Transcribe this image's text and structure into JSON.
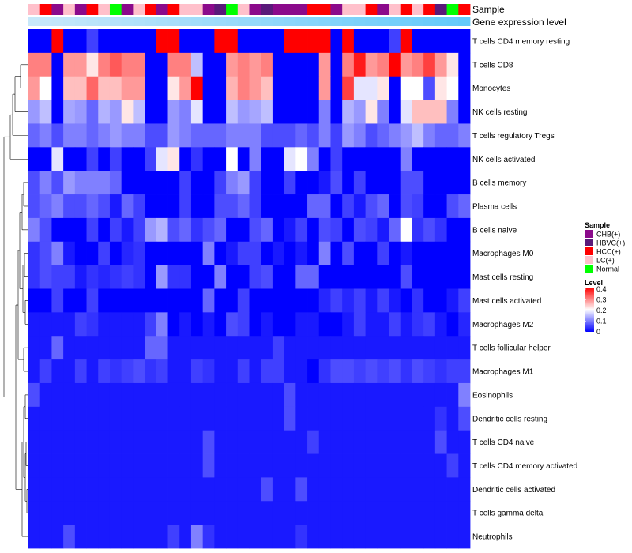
{
  "chart_data": {
    "type": "heatmap",
    "title": "",
    "n_columns": 38,
    "annotation_tracks": [
      "Sample",
      "Gene expression level"
    ],
    "sample_legend": {
      "title": "Sample",
      "entries": [
        {
          "label": "CHB(+)",
          "color": "#8B0A8B"
        },
        {
          "label": "HBVC(+)",
          "color": "#5A1A7A"
        },
        {
          "label": "HCC(+)",
          "color": "#FF0000"
        },
        {
          "label": "LC(+)",
          "color": "#FFC0CB"
        },
        {
          "label": "Normal",
          "color": "#00FF00"
        }
      ]
    },
    "level_legend": {
      "title": "Level",
      "ticks": [
        "0.4",
        "0.3",
        "0.2",
        "0.1",
        "0"
      ],
      "range": [
        0,
        0.4
      ],
      "colors": [
        "#0000FF",
        "#FFFFFF",
        "#FF0000"
      ]
    },
    "sample_groups": [
      "LC(+)",
      "HCC(+)",
      "CHB(+)",
      "LC(+)",
      "CHB(+)",
      "HCC(+)",
      "LC(+)",
      "Normal",
      "CHB(+)",
      "LC(+)",
      "HCC(+)",
      "CHB(+)",
      "HCC(+)",
      "LC(+)",
      "LC(+)",
      "CHB(+)",
      "HBVC(+)",
      "Normal",
      "LC(+)",
      "CHB(+)",
      "HBVC(+)",
      "CHB(+)",
      "CHB(+)",
      "CHB(+)",
      "HCC(+)",
      "HCC(+)",
      "CHB(+)",
      "LC(+)",
      "LC(+)",
      "HCC(+)",
      "CHB(+)",
      "LC(+)",
      "HCC(+)",
      "LC(+)",
      "HCC(+)",
      "HBVC(+)",
      "Normal",
      "HCC(+)"
    ],
    "row_labels": [
      "T cells CD4 memory resting",
      "T cells CD8",
      "Monocytes",
      "NK cells resting",
      "T cells regulatory  Tregs",
      "NK cells activated",
      "B cells memory",
      "Plasma cells",
      "B cells naive",
      "Macrophages M0",
      "Mast cells resting",
      "Mast cells activated",
      "Macrophages M2",
      "T cells follicular helper",
      "Macrophages M1",
      "Eosinophils",
      "Dendritic cells resting",
      "T cells CD4 naive",
      "T cells CD4 memory activated",
      "Dendritic cells activated",
      "T cells gamma delta",
      "Neutrophils"
    ],
    "values": [
      [
        0,
        0,
        0.4,
        0,
        0,
        0.05,
        0,
        0,
        0,
        0,
        0,
        0.4,
        0.4,
        0,
        0,
        0,
        0.4,
        0.4,
        0,
        0,
        0,
        0,
        0.4,
        0.4,
        0.4,
        0.4,
        0,
        0.4,
        0,
        0,
        0,
        0.05,
        0.4,
        0,
        0,
        0,
        0,
        0
      ],
      [
        0.3,
        0.3,
        0,
        0.28,
        0.28,
        0.22,
        0.3,
        0.33,
        0.3,
        0.3,
        0,
        0,
        0.3,
        0.3,
        0.15,
        0,
        0,
        0.28,
        0.3,
        0.28,
        0.3,
        0,
        0,
        0,
        0,
        0.28,
        0,
        0.3,
        0.38,
        0.28,
        0.3,
        0.4,
        0.28,
        0.3,
        0.35,
        0.28,
        0.22,
        0
      ],
      [
        0.28,
        0.2,
        0,
        0.25,
        0.25,
        0.32,
        0.25,
        0.25,
        0.28,
        0.28,
        0,
        0,
        0.22,
        0.28,
        0.4,
        0,
        0,
        0.26,
        0.3,
        0.28,
        0.25,
        0,
        0,
        0,
        0,
        0.28,
        0,
        0.35,
        0.18,
        0.18,
        0.22,
        0,
        0.2,
        0.2,
        0.06,
        0.22,
        0.2,
        0
      ],
      [
        0.12,
        0.15,
        0,
        0.13,
        0.12,
        0.08,
        0.14,
        0.12,
        0.22,
        0.15,
        0,
        0,
        0.12,
        0.1,
        0.18,
        0,
        0,
        0.15,
        0.12,
        0.13,
        0.15,
        0,
        0,
        0,
        0,
        0.1,
        0,
        0.14,
        0.12,
        0.22,
        0.1,
        0,
        0.18,
        0.25,
        0.25,
        0.25,
        0.1,
        0
      ],
      [
        0.08,
        0.1,
        0.06,
        0.1,
        0.1,
        0.08,
        0.1,
        0.12,
        0.1,
        0.1,
        0.06,
        0.06,
        0.12,
        0.1,
        0.08,
        0.08,
        0.08,
        0.1,
        0.1,
        0.1,
        0.06,
        0.06,
        0.06,
        0.08,
        0.06,
        0.1,
        0.05,
        0.12,
        0.1,
        0.06,
        0.08,
        0.1,
        0.12,
        0.15,
        0.1,
        0.08,
        0.08,
        0.1
      ],
      [
        0,
        0,
        0.18,
        0,
        0,
        0.05,
        0,
        0.05,
        0,
        0,
        0.05,
        0.18,
        0.22,
        0,
        0.04,
        0,
        0,
        0.2,
        0,
        0.1,
        0,
        0,
        0.18,
        0.2,
        0.1,
        0,
        0.05,
        0,
        0,
        0,
        0,
        0,
        0.1,
        0,
        0,
        0,
        0,
        0
      ],
      [
        0.06,
        0.1,
        0.06,
        0.12,
        0.1,
        0.1,
        0.1,
        0.08,
        0,
        0,
        0,
        0,
        0,
        0.05,
        0,
        0,
        0.05,
        0.1,
        0.12,
        0.05,
        0,
        0,
        0.05,
        0,
        0,
        0.02,
        0.06,
        0,
        0.05,
        0,
        0,
        0,
        0.06,
        0.06,
        0,
        0,
        0,
        0
      ],
      [
        0.06,
        0.08,
        0.1,
        0.06,
        0.06,
        0.08,
        0.06,
        0.02,
        0.08,
        0.05,
        0,
        0,
        0,
        0.05,
        0,
        0,
        0.06,
        0.06,
        0.08,
        0.05,
        0,
        0,
        0,
        0,
        0.08,
        0.08,
        0,
        0.05,
        0.02,
        0.06,
        0.08,
        0,
        0.06,
        0.05,
        0,
        0,
        0.06,
        0.08
      ],
      [
        0.1,
        0.06,
        0,
        0,
        0,
        0.05,
        0,
        0.05,
        0.02,
        0.05,
        0.12,
        0.14,
        0.06,
        0.08,
        0.04,
        0.06,
        0.08,
        0,
        0,
        0.06,
        0.08,
        0,
        0.02,
        0.05,
        0,
        0.06,
        0.05,
        0,
        0.06,
        0.05,
        0.02,
        0.08,
        0.2,
        0.04,
        0.06,
        0.04,
        0,
        0
      ],
      [
        0.04,
        0.06,
        0.1,
        0.02,
        0,
        0,
        0.05,
        0,
        0.03,
        0.04,
        0,
        0,
        0,
        0,
        0,
        0.1,
        0,
        0.02,
        0.05,
        0.05,
        0,
        0.02,
        0,
        0.02,
        0,
        0.1,
        0,
        0.06,
        0,
        0,
        0.05,
        0,
        0.02,
        0,
        0,
        0,
        0,
        0
      ],
      [
        0.04,
        0.06,
        0.05,
        0.05,
        0.02,
        0.04,
        0.03,
        0.04,
        0.05,
        0.04,
        0,
        0.12,
        0.04,
        0.04,
        0,
        0,
        0.1,
        0,
        0,
        0.05,
        0.06,
        0,
        0,
        0.08,
        0.08,
        0,
        0,
        0,
        0,
        0,
        0,
        0,
        0.06,
        0,
        0,
        0,
        0,
        0
      ],
      [
        0,
        0,
        0.05,
        0,
        0,
        0.05,
        0,
        0,
        0,
        0,
        0,
        0,
        0,
        0,
        0,
        0.08,
        0,
        0,
        0.05,
        0,
        0,
        0,
        0,
        0,
        0,
        0.03,
        0.05,
        0.03,
        0.05,
        0.02,
        0.05,
        0.02,
        0,
        0.04,
        0,
        0,
        0.02,
        0.05
      ],
      [
        0.02,
        0.02,
        0.02,
        0.02,
        0.05,
        0.04,
        0.02,
        0.02,
        0.02,
        0.02,
        0.05,
        0.1,
        0,
        0.02,
        0,
        0.02,
        0,
        0.06,
        0.05,
        0,
        0.02,
        0,
        0,
        0.02,
        0.02,
        0,
        0,
        0.02,
        0.05,
        0.02,
        0.02,
        0.05,
        0.02,
        0.04,
        0.05,
        0.02,
        0,
        0.03
      ],
      [
        0.02,
        0.02,
        0.08,
        0.02,
        0.02,
        0.02,
        0.02,
        0.02,
        0.02,
        0.02,
        0.08,
        0.08,
        0.02,
        0.02,
        0.02,
        0.02,
        0.02,
        0.02,
        0.02,
        0.02,
        0.02,
        0.05,
        0.02,
        0.02,
        0.02,
        0.02,
        0.02,
        0.02,
        0.02,
        0.02,
        0.02,
        0.02,
        0.02,
        0.02,
        0.02,
        0.02,
        0.02,
        0.02
      ],
      [
        0.02,
        0.05,
        0.02,
        0.02,
        0.05,
        0.02,
        0.05,
        0.04,
        0.05,
        0.06,
        0.04,
        0.05,
        0.02,
        0.02,
        0.05,
        0.04,
        0.02,
        0.02,
        0.05,
        0.02,
        0.05,
        0.05,
        0.02,
        0.02,
        0,
        0.04,
        0.06,
        0.06,
        0.05,
        0.06,
        0.05,
        0.06,
        0.04,
        0.06,
        0.05,
        0.04,
        0.05,
        0.05
      ],
      [
        0.06,
        0.02,
        0.02,
        0.02,
        0.02,
        0.02,
        0.02,
        0.02,
        0.02,
        0.02,
        0.02,
        0.02,
        0.02,
        0.02,
        0.02,
        0.02,
        0.02,
        0.02,
        0.02,
        0.02,
        0.02,
        0.02,
        0.06,
        0.02,
        0.02,
        0.02,
        0.02,
        0.02,
        0.02,
        0.02,
        0.02,
        0.02,
        0.02,
        0.02,
        0.02,
        0.02,
        0.02,
        0.1
      ],
      [
        0.02,
        0.02,
        0.02,
        0.02,
        0.02,
        0.02,
        0.02,
        0.02,
        0.02,
        0.02,
        0.02,
        0.02,
        0.02,
        0.02,
        0.02,
        0.02,
        0.02,
        0.02,
        0.02,
        0.02,
        0.02,
        0.02,
        0.06,
        0.02,
        0.02,
        0.02,
        0.02,
        0.02,
        0.02,
        0.02,
        0.02,
        0.02,
        0.02,
        0.02,
        0.02,
        0.04,
        0.02,
        0.06
      ],
      [
        0.02,
        0.02,
        0.02,
        0.02,
        0.02,
        0.02,
        0.02,
        0.02,
        0.02,
        0.02,
        0.02,
        0.02,
        0.02,
        0.02,
        0.02,
        0.06,
        0.02,
        0.02,
        0.02,
        0.02,
        0.02,
        0.02,
        0.02,
        0.02,
        0.05,
        0.02,
        0.02,
        0.02,
        0.02,
        0.02,
        0.02,
        0.02,
        0.02,
        0.02,
        0.02,
        0.06,
        0.02,
        0.02
      ],
      [
        0.02,
        0.02,
        0.02,
        0.02,
        0.02,
        0.02,
        0.02,
        0.02,
        0.02,
        0.02,
        0.02,
        0.02,
        0.02,
        0.02,
        0.02,
        0.06,
        0.02,
        0.02,
        0.02,
        0.02,
        0.02,
        0.02,
        0.02,
        0.02,
        0.02,
        0.02,
        0.02,
        0.02,
        0.02,
        0.02,
        0.02,
        0.02,
        0.02,
        0.02,
        0.02,
        0.02,
        0.05,
        0.02
      ],
      [
        0.02,
        0.02,
        0.02,
        0.02,
        0.02,
        0.02,
        0.02,
        0.02,
        0.02,
        0.02,
        0.02,
        0.02,
        0.02,
        0.02,
        0.02,
        0.02,
        0.02,
        0.02,
        0.02,
        0.02,
        0.06,
        0.02,
        0.02,
        0.06,
        0.02,
        0.02,
        0.02,
        0.02,
        0.02,
        0.02,
        0.02,
        0.02,
        0.02,
        0.02,
        0.02,
        0.02,
        0.02,
        0.02
      ],
      [
        0.02,
        0.02,
        0.02,
        0.02,
        0.02,
        0.02,
        0.02,
        0.02,
        0.02,
        0.02,
        0.02,
        0.02,
        0.02,
        0.02,
        0.02,
        0.02,
        0.02,
        0.02,
        0.02,
        0.02,
        0.02,
        0.02,
        0.02,
        0.02,
        0.02,
        0.02,
        0.02,
        0.02,
        0.02,
        0.02,
        0.02,
        0.02,
        0.02,
        0.02,
        0.02,
        0.02,
        0.02,
        0.02
      ],
      [
        0.02,
        0.02,
        0.02,
        0.06,
        0.02,
        0.02,
        0.02,
        0.02,
        0.02,
        0.02,
        0.02,
        0.02,
        0.05,
        0.02,
        0.1,
        0.04,
        0.02,
        0.02,
        0.02,
        0.02,
        0.02,
        0.02,
        0.02,
        0.04,
        0.02,
        0.02,
        0.02,
        0.02,
        0.02,
        0.02,
        0.02,
        0.02,
        0.02,
        0.02,
        0.02,
        0.02,
        0.02,
        0.02
      ]
    ]
  }
}
